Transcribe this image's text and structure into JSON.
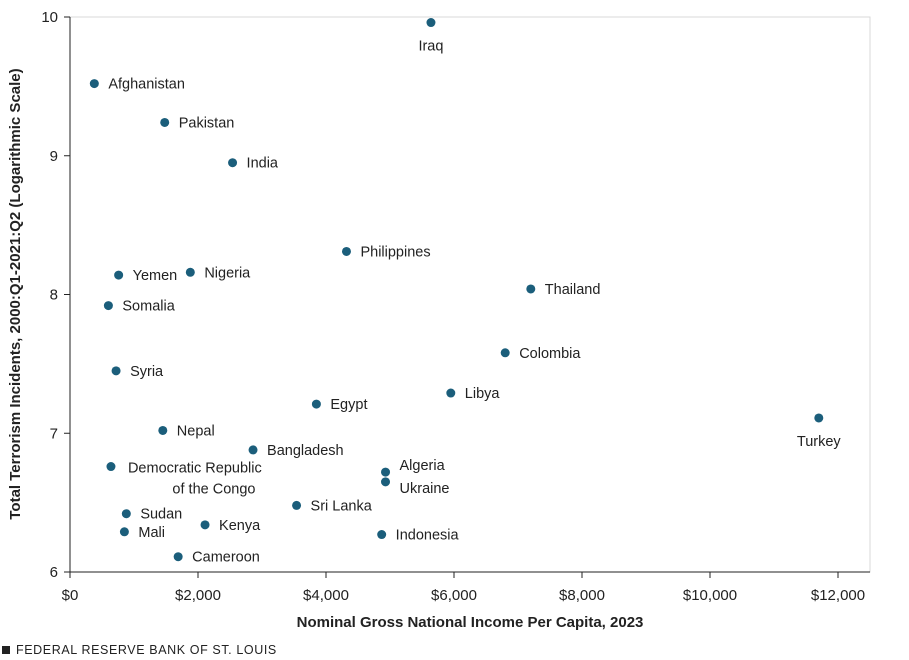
{
  "chart_data": {
    "type": "scatter",
    "xlabel": "Nominal Gross National Income Per Capita, 2023",
    "ylabel": "Total Terrorism Incidents, 2000:Q1-2021:Q2 (Logarithmic Scale)",
    "xlim": [
      0,
      12500
    ],
    "ylim": [
      6,
      10
    ],
    "x_ticks": [
      0,
      2000,
      4000,
      6000,
      8000,
      10000,
      12000
    ],
    "x_tick_labels": [
      "$0",
      "$2,000",
      "$4,000",
      "$6,000",
      "$8,000",
      "$10,000",
      "$12,000"
    ],
    "y_ticks": [
      6,
      7,
      8,
      9,
      10
    ],
    "y_tick_labels": [
      "6",
      "7",
      "8",
      "9",
      "10"
    ],
    "grid": false,
    "marker_color": "#1b5e7b",
    "points": [
      {
        "label": "Iraq",
        "x": 5640,
        "y": 9.96,
        "pos": "below"
      },
      {
        "label": "Afghanistan",
        "x": 380,
        "y": 9.52,
        "pos": "right"
      },
      {
        "label": "Pakistan",
        "x": 1480,
        "y": 9.24,
        "pos": "right"
      },
      {
        "label": "India",
        "x": 2540,
        "y": 8.95,
        "pos": "right"
      },
      {
        "label": "Philippines",
        "x": 4320,
        "y": 8.31,
        "pos": "right"
      },
      {
        "label": "Yemen",
        "x": 760,
        "y": 8.14,
        "pos": "right"
      },
      {
        "label": "Nigeria",
        "x": 1880,
        "y": 8.16,
        "pos": "right"
      },
      {
        "label": "Thailand",
        "x": 7200,
        "y": 8.04,
        "pos": "right"
      },
      {
        "label": "Somalia",
        "x": 600,
        "y": 7.92,
        "pos": "right"
      },
      {
        "label": "Colombia",
        "x": 6800,
        "y": 7.58,
        "pos": "right"
      },
      {
        "label": "Syria",
        "x": 720,
        "y": 7.45,
        "pos": "right"
      },
      {
        "label": "Libya",
        "x": 5950,
        "y": 7.29,
        "pos": "right"
      },
      {
        "label": "Egypt",
        "x": 3850,
        "y": 7.21,
        "pos": "right"
      },
      {
        "label": "Turkey",
        "x": 11700,
        "y": 7.11,
        "pos": "below"
      },
      {
        "label": "Nepal",
        "x": 1450,
        "y": 7.02,
        "pos": "right"
      },
      {
        "label": "Bangladesh",
        "x": 2860,
        "y": 6.88,
        "pos": "right"
      },
      {
        "label": "Democratic Republic of the Congo",
        "x": 640,
        "y": 6.76,
        "pos": "congo"
      },
      {
        "label": "Algeria",
        "x": 4930,
        "y": 6.72,
        "pos": "right-up"
      },
      {
        "label": "Ukraine",
        "x": 4930,
        "y": 6.65,
        "pos": "right-down"
      },
      {
        "label": "Sri Lanka",
        "x": 3540,
        "y": 6.48,
        "pos": "right"
      },
      {
        "label": "Sudan",
        "x": 880,
        "y": 6.42,
        "pos": "right"
      },
      {
        "label": "Kenya",
        "x": 2110,
        "y": 6.34,
        "pos": "right"
      },
      {
        "label": "Mali",
        "x": 850,
        "y": 6.29,
        "pos": "right"
      },
      {
        "label": "Indonesia",
        "x": 4870,
        "y": 6.27,
        "pos": "right"
      },
      {
        "label": "Cameroon",
        "x": 1690,
        "y": 6.11,
        "pos": "right"
      }
    ]
  },
  "footer": {
    "source": "FEDERAL RESERVE BANK OF ST. LOUIS"
  }
}
